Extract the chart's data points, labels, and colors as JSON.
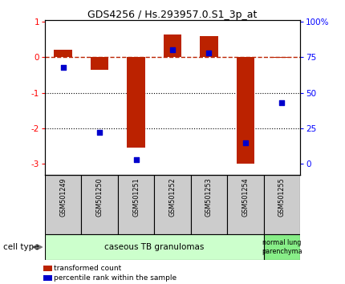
{
  "title": "GDS4256 / Hs.293957.0.S1_3p_at",
  "samples": [
    "GSM501249",
    "GSM501250",
    "GSM501251",
    "GSM501252",
    "GSM501253",
    "GSM501254",
    "GSM501255"
  ],
  "red_values": [
    0.2,
    -0.35,
    -2.55,
    0.65,
    0.6,
    -3.0,
    -0.02
  ],
  "blue_values": [
    68,
    22,
    3,
    80,
    78,
    15,
    43
  ],
  "ylim_left": [
    -3.3,
    1.05
  ],
  "ylim_right": [
    0,
    100
  ],
  "left_ticks": [
    1,
    0,
    -1,
    -2,
    -3
  ],
  "right_ticks": [
    100,
    75,
    50,
    25,
    0
  ],
  "right_tick_labels": [
    "100%",
    "75",
    "50",
    "25",
    "0"
  ],
  "dotted_lines": [
    -1,
    -2
  ],
  "bar_color": "#bb2200",
  "dot_color": "#0000cc",
  "group1_label": "caseous TB granulomas",
  "group2_label": "normal lung\nparenchyma",
  "group1_color": "#ccffcc",
  "group2_color": "#88ee88",
  "cell_type_label": "cell type",
  "legend_red": "transformed count",
  "legend_blue": "percentile rank within the sample",
  "bar_width": 0.5,
  "label_bg": "#cccccc"
}
